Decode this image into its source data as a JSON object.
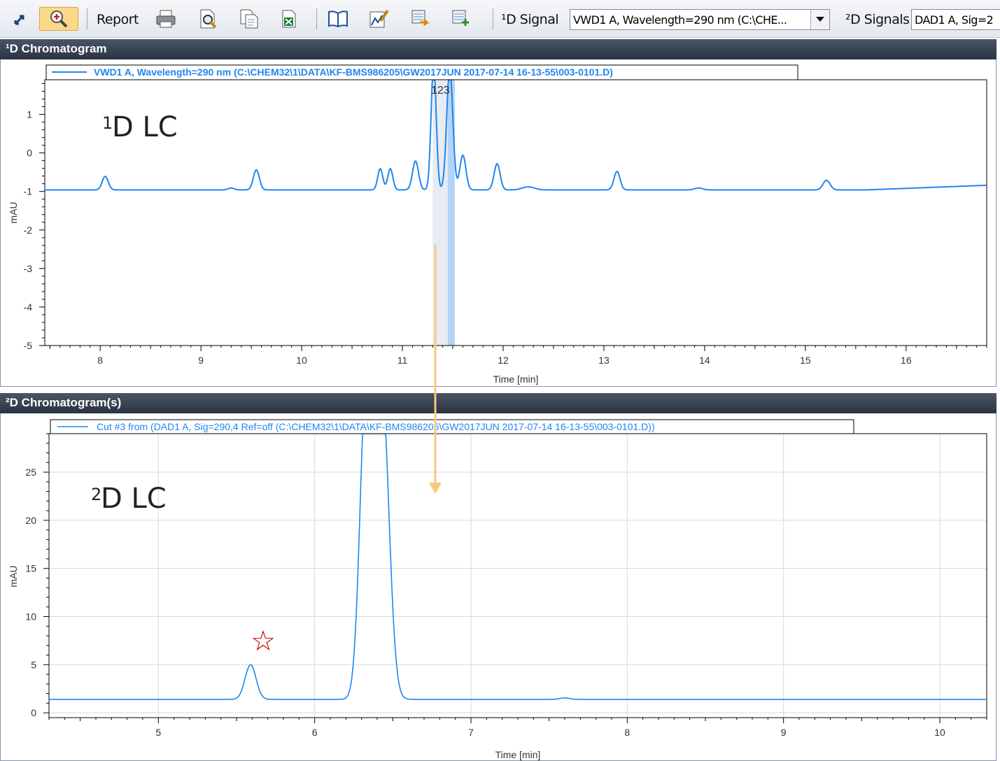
{
  "toolbar": {
    "report_label": "Report",
    "signal1_label": "¹D Signal",
    "signal1_value": "VWD1 A, Wavelength=290 nm (C:\\CHE...",
    "signal2_label": "²D Signals",
    "signal2_value": "DAD1 A, Sig=2",
    "icons": [
      "resize-icon",
      "zoom-icon",
      "print-icon",
      "preview-icon",
      "copy-icon",
      "excel-icon",
      "book-icon",
      "chart-edit-icon",
      "export-icon",
      "import-icon"
    ]
  },
  "panel1": {
    "title": "¹D Chromatogram"
  },
  "panel2": {
    "title": "²D Chromatogram(s)"
  },
  "annotations": {
    "lc1_sup": "1",
    "lc1_text": "D LC",
    "lc2_sup": "2",
    "lc2_text": "D LC",
    "star": "☆",
    "cut_label": "123"
  },
  "colors": {
    "signal": "#1f86f0",
    "arrow": "#f9c87c",
    "star": "#c00000",
    "grid": "#d9d9d9",
    "cut_light": "#e8ebf2",
    "cut_blue": "#b3d4f7"
  },
  "chart_data": [
    {
      "type": "line",
      "name": "1D",
      "legend": "VWD1 A, Wavelength=290 nm (C:\\CHEM32\\1\\DATA\\KF-BMS986205\\GW2017JUN 2017-07-14 16-13-55\\003-0101.D)",
      "xlabel": "Time [min]",
      "ylabel": "mAU",
      "xlim": [
        7.45,
        16.8
      ],
      "ylim": [
        -5,
        1.9
      ],
      "xticks": [
        8,
        9,
        10,
        11,
        12,
        13,
        14,
        15,
        16
      ],
      "yticks": [
        -5,
        -4,
        -3,
        -2,
        -1,
        0,
        1
      ],
      "grid": false,
      "baseline": -0.96,
      "peaks": [
        {
          "t": 8.05,
          "h": 0.35,
          "w": 0.03
        },
        {
          "t": 9.3,
          "h": 0.05,
          "w": 0.03
        },
        {
          "t": 9.55,
          "h": 0.52,
          "w": 0.03
        },
        {
          "t": 10.78,
          "h": 0.55,
          "w": 0.025
        },
        {
          "t": 10.88,
          "h": 0.55,
          "w": 0.025
        },
        {
          "t": 11.13,
          "h": 0.75,
          "w": 0.03
        },
        {
          "t": 11.31,
          "h": 3.3,
          "w": 0.025
        },
        {
          "t": 11.47,
          "h": 3.2,
          "w": 0.03
        },
        {
          "t": 11.6,
          "h": 0.9,
          "w": 0.03
        },
        {
          "t": 11.94,
          "h": 0.68,
          "w": 0.03
        },
        {
          "t": 12.25,
          "h": 0.08,
          "w": 0.06
        },
        {
          "t": 13.13,
          "h": 0.48,
          "w": 0.03
        },
        {
          "t": 13.94,
          "h": 0.05,
          "w": 0.04
        },
        {
          "t": 15.21,
          "h": 0.25,
          "w": 0.035
        }
      ],
      "cut_regions": [
        {
          "x0": 11.3,
          "x1": 11.45,
          "kind": "light"
        },
        {
          "x0": 11.45,
          "x1": 11.52,
          "kind": "blue"
        }
      ]
    },
    {
      "type": "line",
      "name": "2D",
      "legend": "Cut #3 from (DAD1 A, Sig=290,4 Ref=off (C:\\CHEM32\\1\\DATA\\KF-BMS986205\\GW2017JUN 2017-07-14 16-13-55\\003-0101.D))",
      "xlabel": "Time [min]",
      "ylabel": "mAU",
      "xlim": [
        4.3,
        10.3
      ],
      "ylim": [
        -0.5,
        29
      ],
      "xticks": [
        5,
        6,
        7,
        8,
        9,
        10
      ],
      "yticks": [
        0,
        5,
        10,
        15,
        20,
        25
      ],
      "grid": true,
      "baseline": 1.4,
      "peaks": [
        {
          "t": 5.59,
          "h": 3.6,
          "w": 0.035
        },
        {
          "t": 6.33,
          "h": 32,
          "w": 0.04
        },
        {
          "t": 6.43,
          "h": 32,
          "w": 0.045
        },
        {
          "t": 7.6,
          "h": 0.15,
          "w": 0.03
        }
      ]
    }
  ]
}
